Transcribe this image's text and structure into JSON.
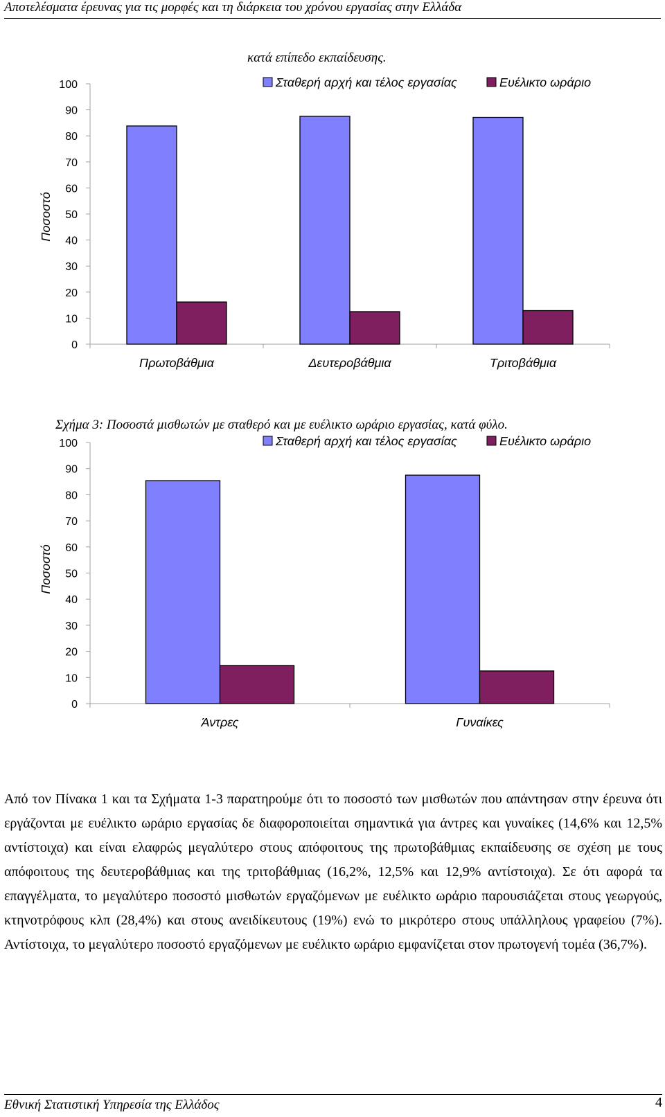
{
  "header": {
    "running_title": "Αποτελέσματα έρευνας για τις μορφές και τη διάρκεια του χρόνου εργασίας στην Ελλάδα"
  },
  "figure2": {
    "caption": "κατά επίπεδο εκπαίδευσης."
  },
  "figure3": {
    "caption": "Σχήμα 3: Ποσοστά  μισθωτών με σταθερό και με ευέλικτο ωράριο εργασίας, κατά φύλο."
  },
  "colors": {
    "fixed": "#8080FF",
    "flexible": "#7F1F5F",
    "axis": "#a0a0a0"
  },
  "chart_data": [
    {
      "type": "bar",
      "categories": [
        "Πρωτοβάθμια",
        "Δευτεροβάθμια",
        "Τριτοβάθμια"
      ],
      "series": [
        {
          "name": "Σταθερή αρχή και τέλος εργασίας",
          "values": [
            83.8,
            87.5,
            87.1
          ]
        },
        {
          "name": "Ευέλικτο ωράριο",
          "values": [
            16.2,
            12.5,
            12.9
          ]
        }
      ],
      "ylabel": "Ποσοστό",
      "ylim": [
        0,
        100
      ],
      "yticks": [
        "0",
        "10",
        "20",
        "30",
        "40",
        "50",
        "60",
        "70",
        "80",
        "90",
        "100"
      ],
      "legend": "top-right",
      "grid": false
    },
    {
      "type": "bar",
      "categories": [
        "Άντρες",
        "Γυναίκες"
      ],
      "series": [
        {
          "name": "Σταθερή αρχή και τέλος εργασίας",
          "values": [
            85.4,
            87.5
          ]
        },
        {
          "name": "Ευέλικτο ωράριο",
          "values": [
            14.6,
            12.5
          ]
        }
      ],
      "ylabel": "Ποσοστό",
      "ylim": [
        0,
        100
      ],
      "yticks": [
        "0",
        "10",
        "20",
        "30",
        "40",
        "50",
        "60",
        "70",
        "80",
        "90",
        "100"
      ],
      "legend": "top-right",
      "grid": false
    }
  ],
  "body": {
    "paragraph": "Από τον Πίνακα 1 και τα Σχήματα 1-3 παρατηρούμε ότι το ποσοστό των μισθωτών που απάντησαν στην έρευνα ότι εργάζονται με ευέλικτο ωράριο εργασίας δε διαφοροποιείται σημαντικά για άντρες και γυναίκες (14,6% και 12,5% αντίστοιχα) και είναι ελαφρώς μεγαλύτερο στους απόφοιτους της πρωτοβάθμιας εκπαίδευσης σε σχέση με τους απόφοιτους της δευτεροβάθμιας και της τριτοβάθμιας (16,2%, 12,5% και 12,9% αντίστοιχα). Σε ότι αφορά τα επαγγέλματα, το μεγαλύτερο ποσοστό μισθωτών εργαζόμενων με ευέλικτο ωράριο παρουσιάζεται στους γεωργούς, κτηνοτρόφους κλπ (28,4%) και στους ανειδίκευτους (19%) ενώ το μικρότερο στους υπάλληλους γραφείου (7%). Αντίστοιχα, το μεγαλύτερο ποσοστό εργαζόμενων με ευέλικτο ωράριο εμφανίζεται στον πρωτογενή τομέα (36,7%)."
  },
  "footer": {
    "organization": "Εθνική Στατιστική Υπηρεσία της Ελλάδος",
    "page_number": "4"
  }
}
